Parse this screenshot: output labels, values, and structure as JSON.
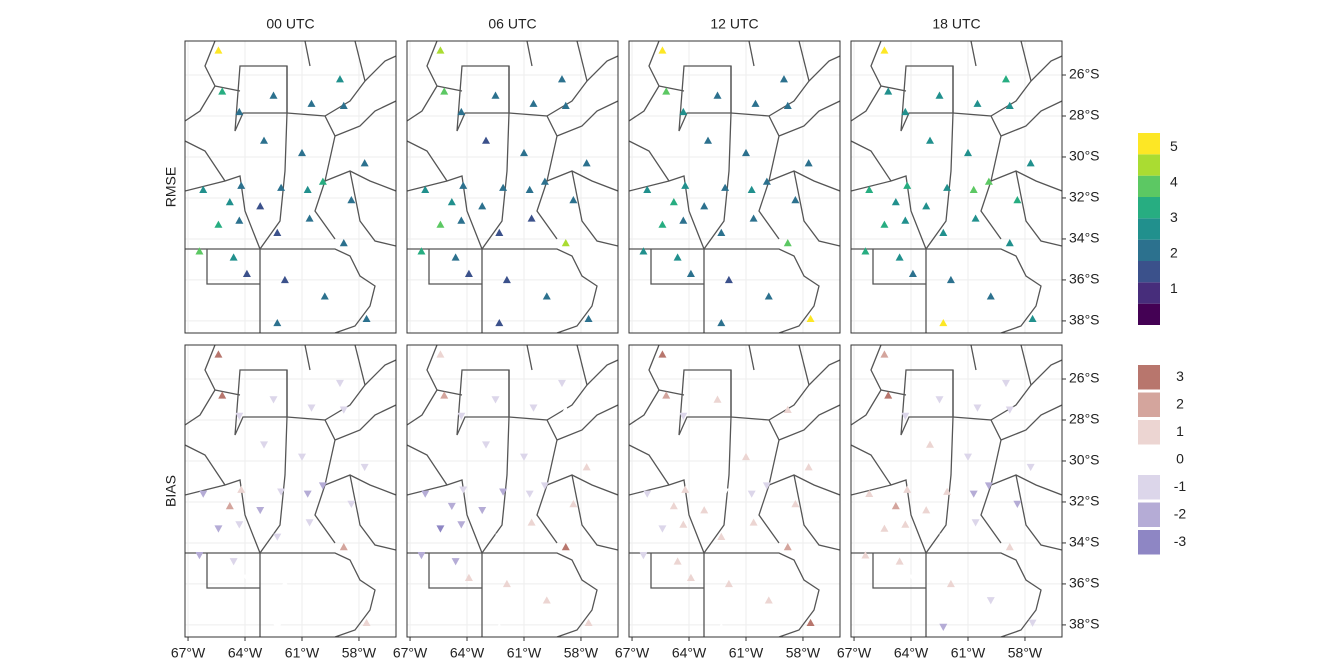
{
  "columns": [
    "00 UTC",
    "06 UTC",
    "12 UTC",
    "18 UTC"
  ],
  "rows": [
    "RMSE",
    "BIAS"
  ],
  "xlim": [
    -67.16,
    -56.05
  ],
  "ylim": [
    -38.59,
    -24.34
  ],
  "xticks": [
    {
      "value": -67,
      "label": "67°W"
    },
    {
      "value": -64,
      "label": "64°W"
    },
    {
      "value": -61,
      "label": "61°W"
    },
    {
      "value": -58,
      "label": "58°W"
    }
  ],
  "yticks": [
    {
      "value": -26,
      "label": "26°S"
    },
    {
      "value": -28,
      "label": "28°S"
    },
    {
      "value": -30,
      "label": "30°S"
    },
    {
      "value": -32,
      "label": "32°S"
    },
    {
      "value": -34,
      "label": "34°S"
    },
    {
      "value": -36,
      "label": "36°S"
    },
    {
      "value": -38,
      "label": "38°S"
    }
  ],
  "stations": {
    "lon": [
      -65.2,
      -65.4,
      -64.3,
      -62.5,
      -60.5,
      -58.8,
      -59.0,
      -63.0,
      -64.2,
      -64.8,
      -63.2,
      -62.1,
      -60.7,
      -59.9,
      -58.4,
      -65.4,
      -64.3,
      -62.3,
      -60.6,
      -58.8,
      -66.4,
      -63.9,
      -61.9,
      -59.8,
      -57.6,
      -62.3,
      -66.2,
      -61.0,
      -57.7,
      -64.6
    ],
    "lat": [
      -26.8,
      -24.8,
      -27.8,
      -27.0,
      -27.4,
      -27.5,
      -26.2,
      -29.2,
      -31.4,
      -32.2,
      -32.4,
      -31.5,
      -31.6,
      -31.2,
      -32.1,
      -33.3,
      -33.1,
      -33.7,
      -33.0,
      -34.2,
      -34.6,
      -35.7,
      -36.0,
      -36.8,
      -37.9,
      -38.1,
      -31.6,
      -29.8,
      -30.3,
      -34.9
    ]
  },
  "rmse": [
    [
      3.4,
      4.9,
      2.2,
      2.0,
      1.9,
      2.1,
      2.4,
      1.8,
      2.3,
      2.6,
      1.7,
      1.9,
      2.8,
      3.1,
      2.0,
      3.3,
      2.1,
      1.6,
      1.8,
      2.2,
      3.8,
      1.7,
      1.6,
      1.9,
      2.0,
      1.8,
      2.5,
      1.9,
      2.2,
      2.4
    ],
    [
      3.6,
      4.2,
      2.3,
      1.9,
      1.8,
      2.0,
      2.2,
      1.7,
      2.1,
      2.9,
      1.8,
      1.8,
      2.2,
      2.1,
      1.9,
      3.9,
      2.0,
      1.5,
      1.7,
      4.6,
      3.0,
      1.6,
      1.5,
      1.8,
      1.9,
      1.7,
      2.6,
      1.8,
      2.0,
      2.3
    ],
    [
      3.9,
      5.0,
      2.5,
      2.1,
      2.0,
      2.2,
      2.3,
      2.0,
      2.6,
      3.2,
      2.0,
      2.1,
      2.4,
      2.3,
      2.1,
      3.4,
      2.2,
      1.8,
      1.9,
      3.8,
      2.9,
      1.8,
      1.7,
      2.0,
      4.9,
      1.9,
      2.7,
      2.0,
      2.3,
      2.5
    ],
    [
      2.9,
      5.1,
      2.6,
      2.8,
      2.4,
      2.5,
      3.0,
      2.6,
      3.0,
      2.9,
      2.7,
      2.6,
      3.6,
      3.8,
      3.3,
      3.0,
      2.8,
      2.4,
      2.5,
      2.7,
      3.2,
      2.3,
      2.2,
      2.3,
      2.6,
      4.8,
      3.1,
      2.6,
      2.8,
      2.9
    ]
  ],
  "bias": [
    [
      2.6,
      2.8,
      -1.4,
      -0.9,
      -1.2,
      -0.7,
      -0.8,
      -0.6,
      0.9,
      1.6,
      -1.6,
      -1.2,
      -2.2,
      -1.8,
      -1.3,
      -2.1,
      -1.5,
      -0.6,
      -0.8,
      1.8,
      -2.4,
      -0.3,
      0.4,
      -0.5,
      0.6,
      -0.2,
      -1.9,
      -0.9,
      -1.1,
      -1.2
    ],
    [
      2.1,
      1.4,
      -1.3,
      -1.0,
      -0.8,
      0.4,
      -0.7,
      -1.2,
      -1.4,
      -2.3,
      -1.8,
      -1.7,
      -1.5,
      -0.6,
      0.7,
      -2.6,
      -1.9,
      -0.4,
      0.5,
      2.6,
      -1.7,
      0.5,
      1.2,
      0.8,
      1.0,
      0.3,
      -2.1,
      -0.8,
      0.6,
      -1.6
    ],
    [
      2.4,
      2.9,
      -0.6,
      0.5,
      -0.3,
      0.8,
      -0.4,
      0.4,
      0.6,
      1.2,
      0.7,
      -0.5,
      -1.4,
      -1.0,
      0.5,
      -0.7,
      0.8,
      1.1,
      0.6,
      1.5,
      -0.9,
      0.7,
      1.3,
      0.6,
      2.7,
      0.4,
      -0.8,
      0.5,
      0.9,
      0.6
    ],
    [
      2.7,
      2.3,
      -0.8,
      -1.2,
      -1.5,
      -0.9,
      -1.0,
      0.6,
      1.4,
      1.8,
      1.1,
      0.8,
      -2.4,
      -2.1,
      -1.6,
      0.9,
      1.2,
      -0.5,
      -0.9,
      1.4,
      0.6,
      -0.4,
      0.5,
      -0.6,
      -0.8,
      -2.2,
      1.3,
      -1.1,
      -0.7,
      0.8
    ]
  ],
  "rmse_legend": {
    "colors": [
      "#440154",
      "#472d7b",
      "#3b518b",
      "#2c718e",
      "#21908d",
      "#27ad81",
      "#5cc863",
      "#aadc32",
      "#fde725"
    ],
    "bins": [
      0,
      0.6,
      1.2,
      1.8,
      2.4,
      3,
      3.6,
      4.2,
      4.8,
      5.4
    ],
    "ticks": [
      1,
      2,
      3,
      4,
      5
    ]
  },
  "bias_legend": {
    "colors": [
      "#b8766d",
      "#d4a59d",
      "#ecd5d2",
      "#ffffff",
      "#dcd6ea",
      "#b5acd6",
      "#8e86c4"
    ],
    "ticks": [
      3,
      2,
      1,
      0,
      -1,
      -2,
      -3
    ]
  }
}
